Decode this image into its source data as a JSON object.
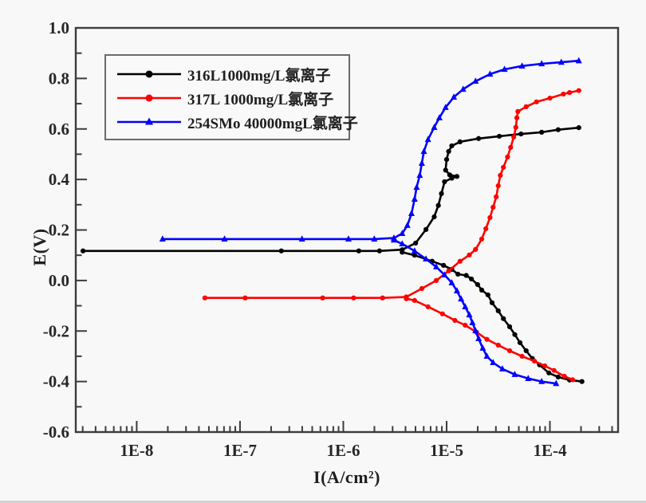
{
  "chart_data": {
    "type": "line",
    "title": "",
    "xlabel": "I(A/cm²)",
    "ylabel": "E(V)",
    "x_scale": "log10",
    "xlim_log10": [
      -8.59,
      -3.34
    ],
    "ylim": [
      -0.6,
      1.0
    ],
    "grid": false,
    "legend_position": "top-left",
    "x_ticks": [
      {
        "log10": -8,
        "label": "1E-8"
      },
      {
        "log10": -7,
        "label": "1E-7"
      },
      {
        "log10": -6,
        "label": "1E-6"
      },
      {
        "log10": -5,
        "label": "1E-5"
      },
      {
        "log10": -4,
        "label": "1E-4"
      }
    ],
    "y_ticks": [
      {
        "value": 1.0,
        "label": "1.0"
      },
      {
        "value": 0.8,
        "label": "0.8"
      },
      {
        "value": 0.6,
        "label": "0.6"
      },
      {
        "value": 0.4,
        "label": "0.4"
      },
      {
        "value": 0.2,
        "label": "0.2"
      },
      {
        "value": 0.0,
        "label": "0.0"
      },
      {
        "value": -0.2,
        "label": "-0.2"
      },
      {
        "value": -0.4,
        "label": "-0.4"
      },
      {
        "value": -0.6,
        "label": "-0.6"
      }
    ],
    "series": [
      {
        "name": "316L1000mg/L氯离子",
        "color": "#000000",
        "marker": "circle",
        "corrosion_potential_V": 0.12,
        "branches": {
          "anodic": [
            [
              -8.52,
              0.117
            ],
            [
              -6.6,
              0.117
            ],
            [
              -5.85,
              0.117
            ],
            [
              -5.65,
              0.117
            ],
            [
              -5.43,
              0.122
            ],
            [
              -5.3,
              0.148
            ],
            [
              -5.2,
              0.202
            ],
            [
              -5.12,
              0.252
            ],
            [
              -5.08,
              0.297
            ],
            [
              -5.05,
              0.344
            ],
            [
              -5.02,
              0.391
            ],
            [
              -4.95,
              0.405
            ],
            [
              -4.9,
              0.412
            ],
            [
              -4.97,
              0.418
            ],
            [
              -5.01,
              0.437
            ],
            [
              -5.0,
              0.479
            ],
            [
              -4.98,
              0.511
            ],
            [
              -4.95,
              0.533
            ],
            [
              -4.87,
              0.549
            ],
            [
              -4.69,
              0.562
            ],
            [
              -4.49,
              0.571
            ],
            [
              -4.28,
              0.58
            ],
            [
              -4.08,
              0.587
            ],
            [
              -3.92,
              0.597
            ],
            [
              -3.72,
              0.605
            ]
          ],
          "cathodic": [
            [
              -5.43,
              0.112
            ],
            [
              -5.31,
              0.1
            ],
            [
              -5.14,
              0.076
            ],
            [
              -5.03,
              0.06
            ],
            [
              -4.95,
              0.044
            ],
            [
              -4.89,
              0.025
            ],
            [
              -4.81,
              0.02
            ],
            [
              -4.76,
              0.006
            ],
            [
              -4.7,
              -0.016
            ],
            [
              -4.66,
              -0.038
            ],
            [
              -4.6,
              -0.057
            ],
            [
              -4.56,
              -0.088
            ],
            [
              -4.5,
              -0.12
            ],
            [
              -4.45,
              -0.151
            ],
            [
              -4.39,
              -0.183
            ],
            [
              -4.34,
              -0.214
            ],
            [
              -4.29,
              -0.246
            ],
            [
              -4.23,
              -0.278
            ],
            [
              -4.17,
              -0.309
            ],
            [
              -4.1,
              -0.334
            ],
            [
              -4.01,
              -0.366
            ],
            [
              -3.92,
              -0.382
            ],
            [
              -3.81,
              -0.394
            ],
            [
              -3.69,
              -0.4
            ]
          ]
        }
      },
      {
        "name": "317L 1000mg/L氯离子",
        "color": "#fe0000",
        "marker": "circle",
        "corrosion_potential_V": -0.07,
        "branches": {
          "anodic": [
            [
              -7.34,
              -0.069
            ],
            [
              -6.95,
              -0.069
            ],
            [
              -6.2,
              -0.069
            ],
            [
              -5.9,
              -0.069
            ],
            [
              -5.62,
              -0.069
            ],
            [
              -5.39,
              -0.065
            ],
            [
              -5.24,
              -0.032
            ],
            [
              -5.1,
              0.0
            ],
            [
              -4.98,
              0.038
            ],
            [
              -4.87,
              0.076
            ],
            [
              -4.78,
              0.101
            ],
            [
              -4.72,
              0.123
            ],
            [
              -4.66,
              0.164
            ],
            [
              -4.62,
              0.205
            ],
            [
              -4.58,
              0.249
            ],
            [
              -4.55,
              0.29
            ],
            [
              -4.52,
              0.331
            ],
            [
              -4.5,
              0.375
            ],
            [
              -4.48,
              0.416
            ],
            [
              -4.45,
              0.448
            ],
            [
              -4.41,
              0.489
            ],
            [
              -4.38,
              0.527
            ],
            [
              -4.35,
              0.568
            ],
            [
              -4.33,
              0.606
            ],
            [
              -4.32,
              0.644
            ],
            [
              -4.31,
              0.669
            ],
            [
              -4.23,
              0.688
            ],
            [
              -4.13,
              0.707
            ],
            [
              -4.0,
              0.722
            ],
            [
              -3.87,
              0.738
            ],
            [
              -3.81,
              0.744
            ],
            [
              -3.72,
              0.752
            ]
          ],
          "cathodic": [
            [
              -5.39,
              -0.072
            ],
            [
              -5.31,
              -0.079
            ],
            [
              -5.18,
              -0.104
            ],
            [
              -5.04,
              -0.132
            ],
            [
              -4.92,
              -0.158
            ],
            [
              -4.82,
              -0.177
            ],
            [
              -4.71,
              -0.205
            ],
            [
              -4.61,
              -0.233
            ],
            [
              -4.5,
              -0.256
            ],
            [
              -4.39,
              -0.278
            ],
            [
              -4.27,
              -0.3
            ],
            [
              -4.15,
              -0.319
            ],
            [
              -4.05,
              -0.338
            ],
            [
              -3.96,
              -0.356
            ],
            [
              -3.86,
              -0.379
            ],
            [
              -3.78,
              -0.393
            ]
          ]
        }
      },
      {
        "name": "254SMo 40000mgL氯离子",
        "color": "#0000fe",
        "marker": "triangle",
        "corrosion_potential_V": 0.16,
        "branches": {
          "anodic": [
            [
              -7.75,
              0.164
            ],
            [
              -7.15,
              0.164
            ],
            [
              -6.4,
              0.164
            ],
            [
              -5.95,
              0.164
            ],
            [
              -5.7,
              0.164
            ],
            [
              -5.51,
              0.168
            ],
            [
              -5.43,
              0.186
            ],
            [
              -5.38,
              0.218
            ],
            [
              -5.34,
              0.265
            ],
            [
              -5.31,
              0.322
            ],
            [
              -5.29,
              0.369
            ],
            [
              -5.26,
              0.416
            ],
            [
              -5.24,
              0.464
            ],
            [
              -5.22,
              0.511
            ],
            [
              -5.18,
              0.558
            ],
            [
              -5.12,
              0.606
            ],
            [
              -5.07,
              0.644
            ],
            [
              -5.01,
              0.685
            ],
            [
              -4.93,
              0.726
            ],
            [
              -4.84,
              0.757
            ],
            [
              -4.72,
              0.789
            ],
            [
              -4.58,
              0.817
            ],
            [
              -4.44,
              0.836
            ],
            [
              -4.27,
              0.849
            ],
            [
              -4.08,
              0.858
            ],
            [
              -3.89,
              0.864
            ],
            [
              -3.72,
              0.87
            ]
          ],
          "cathodic": [
            [
              -5.51,
              0.16
            ],
            [
              -5.43,
              0.145
            ],
            [
              -5.31,
              0.117
            ],
            [
              -5.2,
              0.085
            ],
            [
              -5.1,
              0.054
            ],
            [
              -5.02,
              0.022
            ],
            [
              -4.95,
              -0.009
            ],
            [
              -4.9,
              -0.041
            ],
            [
              -4.86,
              -0.073
            ],
            [
              -4.82,
              -0.104
            ],
            [
              -4.78,
              -0.136
            ],
            [
              -4.75,
              -0.167
            ],
            [
              -4.72,
              -0.199
            ],
            [
              -4.69,
              -0.23
            ],
            [
              -4.65,
              -0.268
            ],
            [
              -4.61,
              -0.3
            ],
            [
              -4.55,
              -0.325
            ],
            [
              -4.46,
              -0.35
            ],
            [
              -4.34,
              -0.372
            ],
            [
              -4.21,
              -0.388
            ],
            [
              -4.08,
              -0.4
            ],
            [
              -3.94,
              -0.408
            ]
          ]
        }
      }
    ]
  }
}
